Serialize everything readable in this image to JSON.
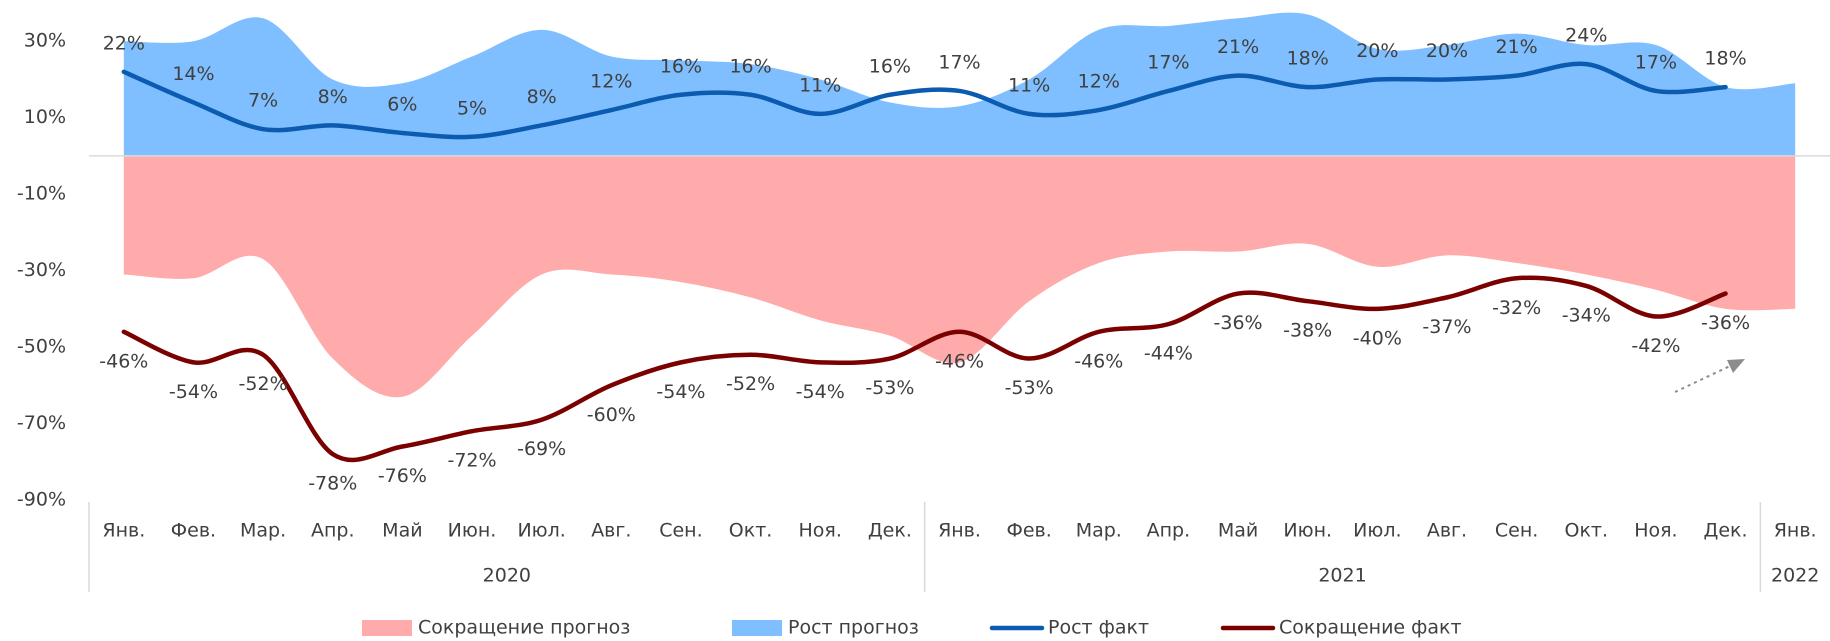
{
  "chart_data": {
    "type": "line",
    "categories": [
      "Янв.",
      "Фев.",
      "Мар.",
      "Апр.",
      "Май",
      "Июн.",
      "Июл.",
      "Авг.",
      "Сен.",
      "Окт.",
      "Ноя.",
      "Дек.",
      "Янв.",
      "Фев.",
      "Мар.",
      "Апр.",
      "Май",
      "Июн.",
      "Июл.",
      "Авг.",
      "Сен.",
      "Окт.",
      "Ноя.",
      "Дек.",
      "Янв."
    ],
    "category_groups": [
      {
        "label": "2020",
        "count": 12
      },
      {
        "label": "2021",
        "count": 12
      },
      {
        "label": "2022",
        "count": 1
      }
    ],
    "ylim": [
      -90,
      40
    ],
    "yticks": [
      {
        "value": 30,
        "label": "30%"
      },
      {
        "value": 10,
        "label": "10%"
      },
      {
        "value": -10,
        "label": "-10%"
      },
      {
        "value": -30,
        "label": "-30%"
      },
      {
        "value": -50,
        "label": "-50%"
      },
      {
        "value": -70,
        "label": "-70%"
      },
      {
        "value": -90,
        "label": "-90%"
      }
    ],
    "legend": "bottom",
    "series": [
      {
        "name": "Сокращение прогноз",
        "type": "area",
        "color": "#ffabab",
        "values": [
          -31,
          -32,
          -27,
          -53,
          -63,
          -47,
          -31,
          -31,
          -33,
          -37,
          -43,
          -47,
          -54,
          -38,
          -28,
          -25,
          -25,
          -23,
          -29,
          -26,
          -28,
          -31,
          -35,
          -40,
          -40
        ]
      },
      {
        "name": "Рост прогноз",
        "type": "area",
        "color": "#7fbfff",
        "values": [
          30,
          30,
          36,
          20,
          19,
          26,
          33,
          26,
          25,
          24,
          20,
          14,
          13,
          20,
          33,
          34,
          36,
          37,
          28,
          29,
          32,
          29,
          29,
          18,
          19
        ]
      },
      {
        "name": "Рост факт",
        "type": "line",
        "color": "#0b5cb0",
        "values": [
          22,
          14,
          7,
          8,
          6,
          5,
          8,
          12,
          16,
          16,
          11,
          16,
          17,
          11,
          12,
          17,
          21,
          18,
          20,
          20,
          21,
          24,
          17,
          18,
          null
        ],
        "value_labels": [
          "22%",
          "14%",
          "7%",
          "8%",
          "6%",
          "5%",
          "8%",
          "12%",
          "16%",
          "16%",
          "11%",
          "16%",
          "17%",
          "11%",
          "12%",
          "17%",
          "21%",
          "18%",
          "20%",
          "20%",
          "21%",
          "24%",
          "17%",
          "18%",
          null
        ]
      },
      {
        "name": "Сокращение факт",
        "type": "line",
        "color": "#7b0000",
        "values": [
          -46,
          -54,
          -52,
          -78,
          -76,
          -72,
          -69,
          -60,
          -54,
          -52,
          -54,
          -53,
          -46,
          -53,
          -46,
          -44,
          -36,
          -38,
          -40,
          -37,
          -32,
          -34,
          -42,
          -36,
          null
        ],
        "value_labels": [
          "-46%",
          "-54%",
          "-52%",
          "-78%",
          "-76%",
          "-72%",
          "-69%",
          "-60%",
          "-54%",
          "-52%",
          "-54%",
          "-53%",
          "-46%",
          "-53%",
          "-46%",
          "-44%",
          "-36%",
          "-38%",
          "-40%",
          "-37%",
          "-32%",
          "-34%",
          "-42%",
          "-36%",
          null
        ]
      }
    ]
  }
}
